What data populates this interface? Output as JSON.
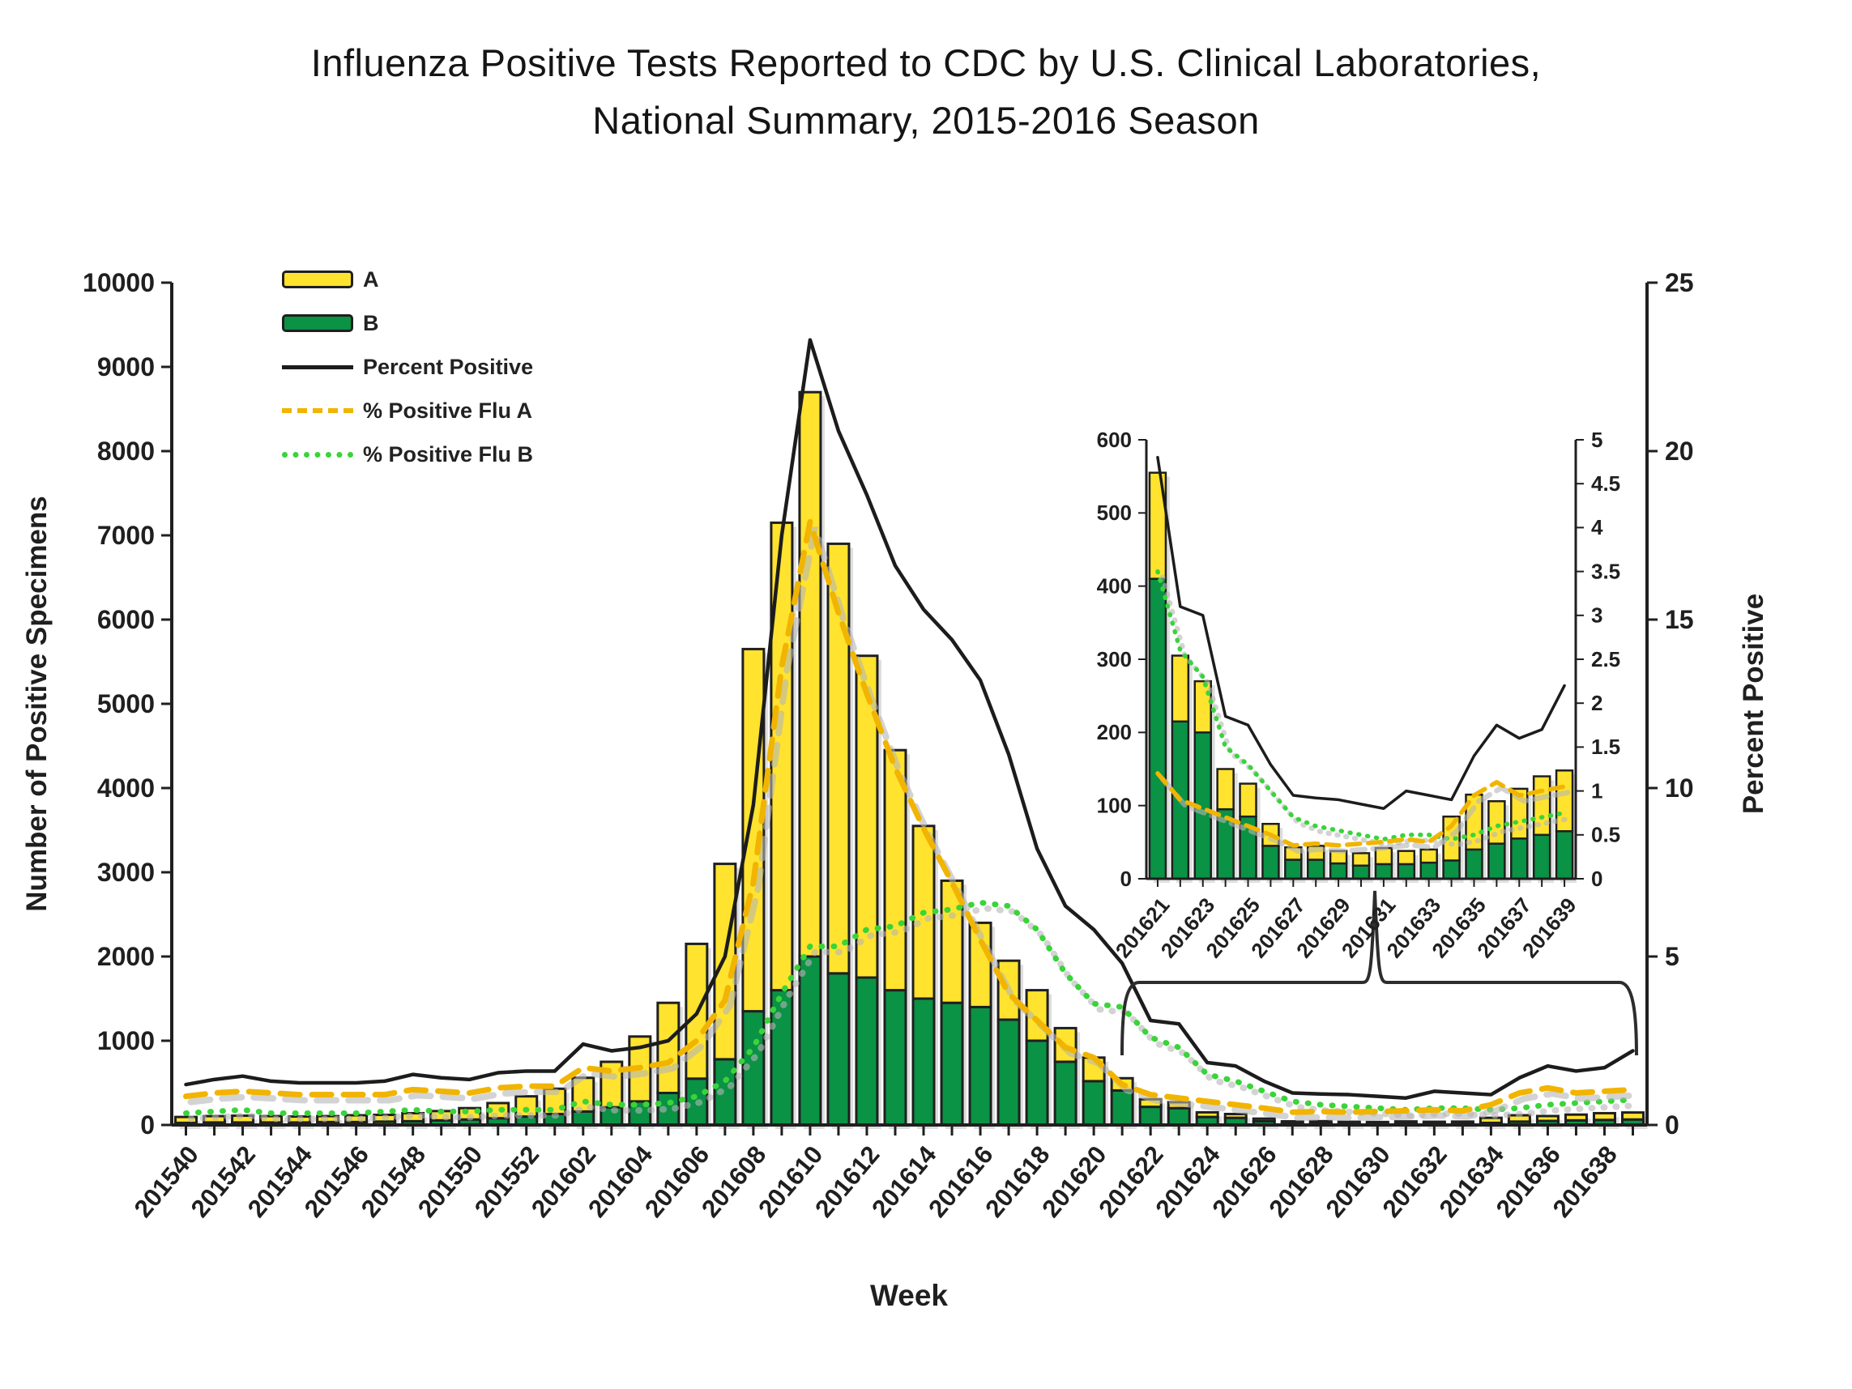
{
  "title": {
    "line1": "Influenza Positive Tests Reported to CDC by U.S. Clinical Laboratories,",
    "line2": "National Summary, 2015-2016 Season"
  },
  "colors": {
    "bar_a_fill": "#ffe32e",
    "bar_b_fill": "#0a9245",
    "bar_stroke": "#1f1f1f",
    "percent_positive_line": "#1c1c1c",
    "percent_flu_a_line": "#f1b400",
    "percent_flu_b_line": "#39d439",
    "shadow": "#b5b5b5"
  },
  "chart_data": [
    {
      "id": "main",
      "type": "bar",
      "subtype": "stacked-bars-with-percent-lines",
      "xlabel": "Week",
      "ylabel": "Number of Positive Specimens",
      "y2label": "Percent Positive",
      "ylim": [
        0,
        10000
      ],
      "ytick": 1000,
      "y2lim": [
        0,
        25
      ],
      "y2tick": 5,
      "grid": "off",
      "legend_position": "upper-left-inside",
      "categories": [
        "201540",
        "201541",
        "201542",
        "201543",
        "201544",
        "201545",
        "201546",
        "201547",
        "201548",
        "201549",
        "201550",
        "201551",
        "201552",
        "201601",
        "201602",
        "201603",
        "201604",
        "201605",
        "201606",
        "201607",
        "201608",
        "201609",
        "201610",
        "201611",
        "201612",
        "201613",
        "201614",
        "201615",
        "201616",
        "201617",
        "201618",
        "201619",
        "201620",
        "201621",
        "201622",
        "201623",
        "201624",
        "201625",
        "201626",
        "201627",
        "201628",
        "201629",
        "201630",
        "201631",
        "201632",
        "201633",
        "201634",
        "201635",
        "201636",
        "201637",
        "201638",
        "201639"
      ],
      "series": [
        {
          "name": "A",
          "type": "bar",
          "stack": true,
          "color": "#ffe32e",
          "values": [
            70,
            75,
            80,
            75,
            70,
            70,
            80,
            80,
            95,
            110,
            135,
            180,
            240,
            300,
            400,
            540,
            770,
            1070,
            1600,
            2320,
            4300,
            5550,
            6700,
            5100,
            3820,
            2850,
            2050,
            1450,
            1000,
            700,
            600,
            400,
            280,
            145,
            90,
            70,
            55,
            45,
            30,
            17,
            19,
            17,
            17,
            22,
            18,
            18,
            60,
            75,
            58,
            68,
            80,
            83
          ]
        },
        {
          "name": "B",
          "type": "bar",
          "stack": true,
          "color": "#0a9245",
          "values": [
            25,
            30,
            30,
            30,
            30,
            35,
            35,
            40,
            45,
            55,
            65,
            80,
            100,
            130,
            160,
            210,
            280,
            380,
            550,
            780,
            1350,
            1600,
            2000,
            1800,
            1750,
            1600,
            1500,
            1450,
            1400,
            1250,
            1000,
            750,
            520,
            410,
            215,
            200,
            95,
            85,
            45,
            26,
            26,
            21,
            18,
            20,
            20,
            22,
            25,
            40,
            48,
            55,
            60,
            65
          ]
        },
        {
          "name": "Percent Positive",
          "type": "line",
          "style": "solid",
          "axis": "y2",
          "color": "#1c1c1c",
          "values": [
            1.2,
            1.35,
            1.45,
            1.3,
            1.25,
            1.25,
            1.25,
            1.3,
            1.5,
            1.4,
            1.35,
            1.55,
            1.6,
            1.6,
            2.4,
            2.2,
            2.3,
            2.5,
            3.3,
            5.0,
            9.5,
            17.5,
            23.3,
            20.6,
            18.7,
            16.6,
            15.3,
            14.4,
            13.2,
            11.0,
            8.2,
            6.5,
            5.8,
            4.8,
            3.1,
            3.0,
            1.85,
            1.75,
            1.3,
            0.95,
            0.92,
            0.9,
            0.85,
            0.8,
            1.0,
            0.95,
            0.9,
            1.4,
            1.75,
            1.6,
            1.7,
            2.2
          ]
        },
        {
          "name": "% Positive Flu A",
          "type": "line",
          "style": "dashed",
          "axis": "y2",
          "color": "#f1b400",
          "values": [
            0.85,
            0.95,
            1.0,
            0.95,
            0.9,
            0.9,
            0.9,
            0.9,
            1.05,
            1.0,
            0.95,
            1.1,
            1.15,
            1.15,
            1.7,
            1.6,
            1.7,
            1.85,
            2.5,
            3.7,
            7.2,
            13.6,
            17.9,
            15.2,
            12.8,
            10.6,
            8.8,
            7.2,
            5.5,
            3.9,
            3.1,
            2.3,
            2.0,
            1.2,
            0.9,
            0.8,
            0.7,
            0.6,
            0.5,
            0.38,
            0.4,
            0.38,
            0.4,
            0.42,
            0.45,
            0.42,
            0.6,
            0.95,
            1.1,
            0.95,
            1.0,
            1.05
          ]
        },
        {
          "name": "% Positive Flu B",
          "type": "line",
          "style": "dotted",
          "axis": "y2",
          "color": "#39d439",
          "values": [
            0.35,
            0.4,
            0.45,
            0.35,
            0.35,
            0.35,
            0.35,
            0.4,
            0.45,
            0.4,
            0.4,
            0.45,
            0.45,
            0.45,
            0.7,
            0.6,
            0.6,
            0.65,
            0.85,
            1.3,
            2.3,
            3.9,
            5.3,
            5.3,
            5.8,
            5.9,
            6.3,
            6.4,
            6.6,
            6.5,
            5.8,
            4.5,
            3.6,
            3.5,
            2.6,
            2.3,
            1.5,
            1.3,
            1.0,
            0.7,
            0.6,
            0.55,
            0.5,
            0.45,
            0.5,
            0.5,
            0.45,
            0.5,
            0.6,
            0.65,
            0.7,
            0.75
          ]
        }
      ],
      "annotations": [
        {
          "type": "brace-callout",
          "label": "",
          "x_from": "201621",
          "x_to": "201639",
          "points_to": "inset"
        }
      ]
    },
    {
      "id": "inset",
      "type": "bar",
      "subtype": "stacked-bars-with-percent-lines",
      "xlabel": "",
      "ylabel": "",
      "y2label": "",
      "ylim": [
        0,
        600
      ],
      "ytick": 100,
      "y2lim": [
        0,
        5
      ],
      "y2tick": 0.5,
      "grid": "off",
      "categories": [
        "201621",
        "201622",
        "201623",
        "201624",
        "201625",
        "201626",
        "201627",
        "201628",
        "201629",
        "201630",
        "201631",
        "201632",
        "201633",
        "201634",
        "201635",
        "201636",
        "201637",
        "201638",
        "201639"
      ],
      "series": [
        {
          "name": "A",
          "type": "bar",
          "stack": true,
          "color": "#ffe32e",
          "values": [
            145,
            90,
            70,
            55,
            45,
            30,
            17,
            19,
            17,
            17,
            22,
            18,
            18,
            60,
            75,
            58,
            68,
            80,
            83
          ]
        },
        {
          "name": "B",
          "type": "bar",
          "stack": true,
          "color": "#0a9245",
          "values": [
            410,
            215,
            200,
            95,
            85,
            45,
            26,
            26,
            21,
            18,
            20,
            20,
            22,
            25,
            40,
            48,
            55,
            60,
            65
          ]
        },
        {
          "name": "Percent Positive",
          "type": "line",
          "style": "solid",
          "axis": "y2",
          "color": "#1c1c1c",
          "values": [
            4.8,
            3.1,
            3.0,
            1.85,
            1.75,
            1.3,
            0.95,
            0.92,
            0.9,
            0.85,
            0.8,
            1.0,
            0.95,
            0.9,
            1.4,
            1.75,
            1.6,
            1.7,
            2.2
          ]
        },
        {
          "name": "% Positive Flu A",
          "type": "line",
          "style": "dashed",
          "axis": "y2",
          "color": "#f1b400",
          "values": [
            1.2,
            0.9,
            0.8,
            0.7,
            0.6,
            0.5,
            0.38,
            0.4,
            0.38,
            0.4,
            0.42,
            0.45,
            0.42,
            0.6,
            0.95,
            1.1,
            0.95,
            1.0,
            1.05
          ]
        },
        {
          "name": "% Positive Flu B",
          "type": "line",
          "style": "dotted",
          "axis": "y2",
          "color": "#39d439",
          "values": [
            3.5,
            2.6,
            2.3,
            1.5,
            1.3,
            1.0,
            0.7,
            0.6,
            0.55,
            0.5,
            0.45,
            0.5,
            0.5,
            0.45,
            0.5,
            0.6,
            0.65,
            0.7,
            0.75
          ]
        }
      ]
    }
  ]
}
